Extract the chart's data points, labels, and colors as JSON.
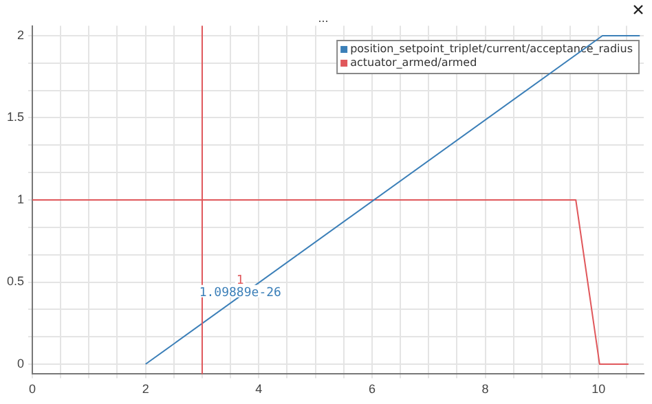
{
  "chart_data": {
    "type": "line",
    "title": "...",
    "series": [
      {
        "name": "position_setpoint_triplet/current/acceptance_radius",
        "color": "#3b7fb8",
        "x": [
          2,
          10.07,
          10.73
        ],
        "values": [
          0,
          2,
          2
        ]
      },
      {
        "name": "actuator_armed/armed",
        "color": "#e0575b",
        "x": [
          0,
          9.6,
          10.02,
          10.53
        ],
        "values": [
          1,
          1,
          0,
          0
        ]
      }
    ],
    "xlim": [
      0,
      10.8
    ],
    "ylim": [
      -0.06,
      2.06
    ],
    "xticks": [
      0,
      {
        "value": 0.5,
        "label": null
      },
      {
        "value": 1,
        "label": null
      },
      {
        "value": 1.5,
        "label": null
      },
      2,
      {
        "value": 2.5,
        "label": null
      },
      {
        "value": 3,
        "label": null
      },
      {
        "value": 3.5,
        "label": null
      },
      4,
      {
        "value": 4.5,
        "label": null
      },
      {
        "value": 5,
        "label": null
      },
      {
        "value": 5.5,
        "label": null
      },
      6,
      {
        "value": 6.5,
        "label": null
      },
      {
        "value": 7,
        "label": null
      },
      {
        "value": 7.5,
        "label": null
      },
      8,
      {
        "value": 8.5,
        "label": null
      },
      {
        "value": 9,
        "label": null
      },
      {
        "value": 9.5,
        "label": null
      },
      10,
      {
        "value": 10.5,
        "label": null
      }
    ],
    "yticks": [
      0,
      {
        "value": 0.167,
        "label": null
      },
      {
        "value": 0.333,
        "label": null
      },
      0.5,
      {
        "value": 0.667,
        "label": null
      },
      {
        "value": 0.833,
        "label": null
      },
      1,
      {
        "value": 1.167,
        "label": null
      },
      {
        "value": 1.333,
        "label": null
      },
      1.5,
      {
        "value": 1.667,
        "label": null
      },
      {
        "value": 1.833,
        "label": null
      },
      2
    ],
    "ref_lines": [
      {
        "axis": "x",
        "value": 3,
        "color": "#e0575b"
      }
    ],
    "annotations": [
      "1",
      "1.09889e-26"
    ],
    "grid": true,
    "legend": "top right",
    "marker": "none",
    "line_style": "solid"
  }
}
